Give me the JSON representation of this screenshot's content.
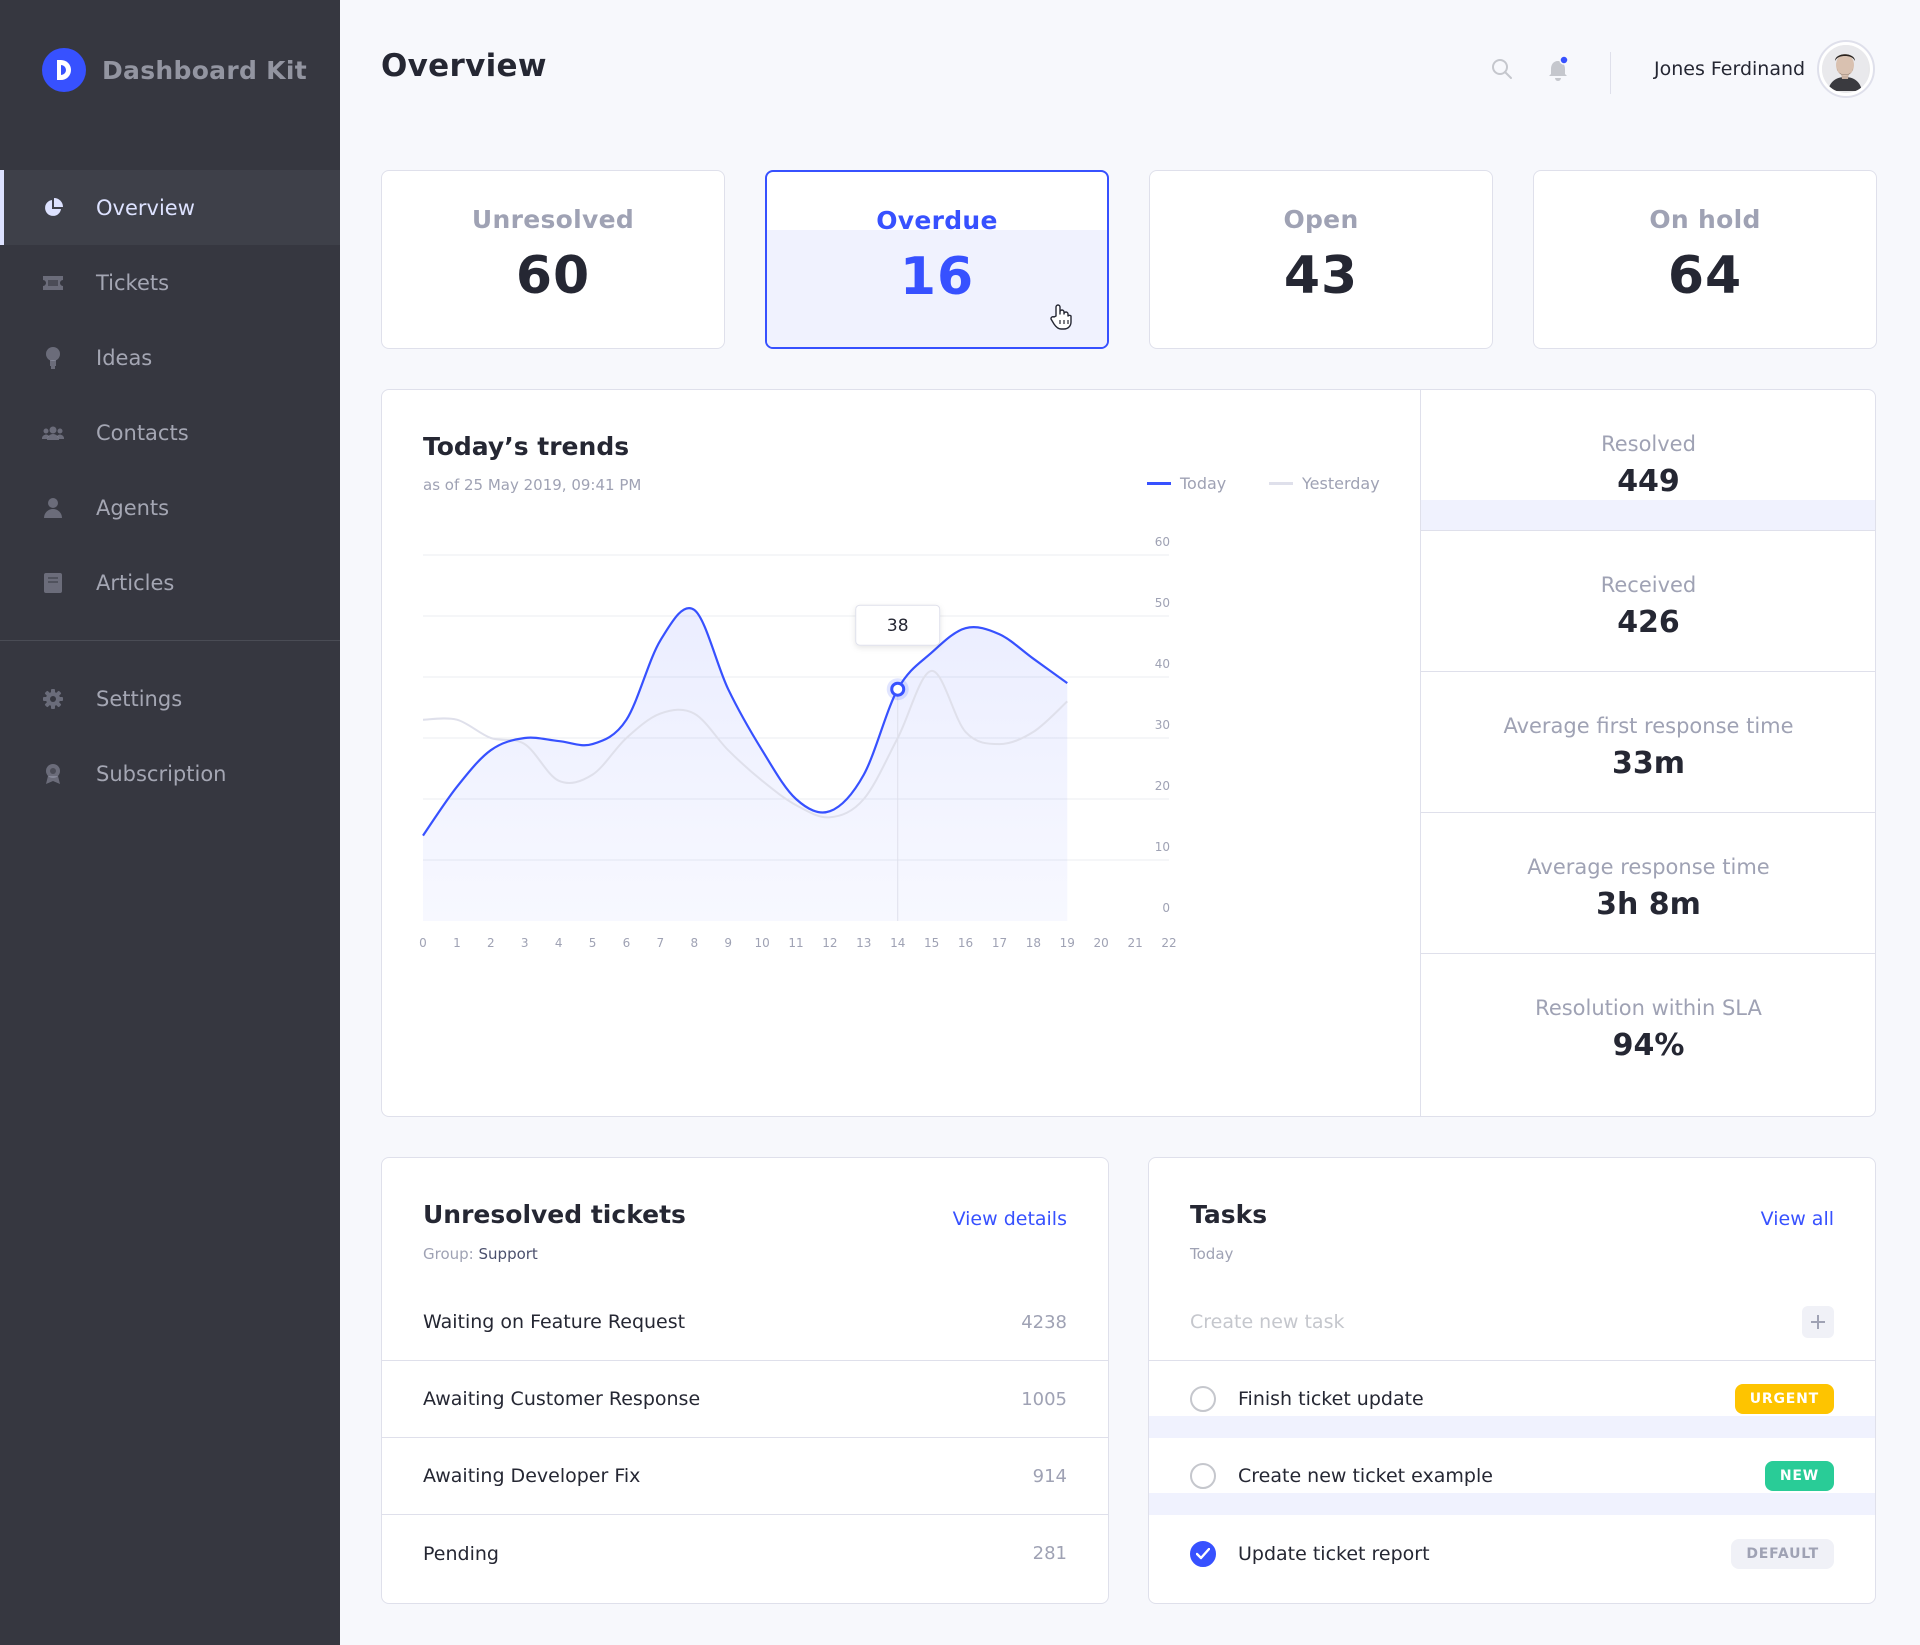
{
  "app": {
    "name": "Dashboard Kit"
  },
  "sidebar": {
    "items": [
      {
        "label": "Overview",
        "icon": "pie-chart-icon"
      },
      {
        "label": "Tickets",
        "icon": "ticket-icon"
      },
      {
        "label": "Ideas",
        "icon": "lightbulb-icon"
      },
      {
        "label": "Contacts",
        "icon": "contacts-icon"
      },
      {
        "label": "Agents",
        "icon": "agent-icon"
      },
      {
        "label": "Articles",
        "icon": "book-icon"
      }
    ],
    "secondary": [
      {
        "label": "Settings",
        "icon": "gear-icon"
      },
      {
        "label": "Subscription",
        "icon": "award-icon"
      }
    ]
  },
  "header": {
    "title": "Overview",
    "user_name": "Jones Ferdinand"
  },
  "stats": [
    {
      "label": "Unresolved",
      "value": "60"
    },
    {
      "label": "Overdue",
      "value": "16"
    },
    {
      "label": "Open",
      "value": "43"
    },
    {
      "label": "On hold",
      "value": "64"
    }
  ],
  "trends": {
    "title": "Today’s trends",
    "subtitle": "as of 25 May 2019, 09:41 PM",
    "legend_today": "Today",
    "legend_yesterday": "Yesterday",
    "tooltip": "38"
  },
  "chart_data": {
    "type": "line",
    "x": [
      0,
      1,
      2,
      3,
      4,
      5,
      6,
      7,
      8,
      9,
      10,
      11,
      12,
      13,
      14,
      15,
      16,
      17,
      18,
      19,
      20,
      21,
      22
    ],
    "ylim": [
      0,
      60
    ],
    "yticks": [
      0,
      10,
      20,
      30,
      40,
      50,
      60
    ],
    "series": [
      {
        "name": "Today",
        "color": "#3751ff",
        "x": [
          0,
          1,
          2,
          3,
          4,
          5,
          6,
          7,
          8,
          9,
          10,
          11,
          12,
          13,
          14,
          15,
          16,
          17,
          18,
          19
        ],
        "values": [
          14,
          22,
          28,
          30,
          29.5,
          29,
          33,
          46,
          51,
          38,
          28,
          20,
          18,
          24,
          38,
          44,
          48,
          47,
          43,
          39
        ]
      },
      {
        "name": "Yesterday",
        "color": "#dfe0eb",
        "x": [
          0,
          1,
          2,
          3,
          4,
          5,
          6,
          7,
          8,
          9,
          10,
          11,
          12,
          13,
          14,
          15,
          16,
          17,
          18,
          19
        ],
        "values": [
          33,
          33,
          30,
          29,
          23,
          24,
          30,
          34,
          34,
          28,
          23,
          19,
          17,
          20,
          30,
          41,
          31,
          29,
          31,
          36
        ]
      }
    ],
    "highlight": {
      "x": 14,
      "value": 38
    }
  },
  "metrics": [
    {
      "label": "Resolved",
      "value": "449"
    },
    {
      "label": "Received",
      "value": "426"
    },
    {
      "label": "Average first response time",
      "value": "33m"
    },
    {
      "label": "Average response time",
      "value": "3h 8m"
    },
    {
      "label": "Resolution within SLA",
      "value": "94%"
    }
  ],
  "unresolved": {
    "title": "Unresolved tickets",
    "link": "View details",
    "group_prefix": "Group:",
    "group_name": "Support",
    "rows": [
      {
        "label": "Waiting on Feature Request",
        "count": "4238"
      },
      {
        "label": "Awaiting Customer Response",
        "count": "1005"
      },
      {
        "label": "Awaiting Developer Fix",
        "count": "914"
      },
      {
        "label": "Pending",
        "count": "281"
      }
    ]
  },
  "tasks": {
    "title": "Tasks",
    "link": "View all",
    "subtitle": "Today",
    "new_placeholder": "Create new task",
    "items": [
      {
        "label": "Finish ticket update",
        "badge": "URGENT",
        "badge_color": "#fec400",
        "done": false
      },
      {
        "label": "Create new ticket example",
        "badge": "NEW",
        "badge_color": "#29cc97",
        "done": false
      },
      {
        "label": "Update ticket report",
        "badge": "DEFAULT",
        "badge_color": "#f0f1f7",
        "done": true
      }
    ]
  }
}
